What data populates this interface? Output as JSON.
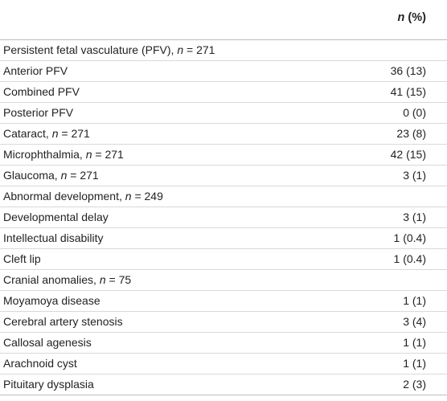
{
  "table": {
    "header": {
      "n_symbol": "n",
      "pct_suffix": " (%)"
    },
    "rows": [
      {
        "label_pre": "Persistent fetal vasculature (PFV), ",
        "n_var": "n",
        "label_post": " = 271",
        "value": ""
      },
      {
        "label_pre": "Anterior PFV",
        "n_var": "",
        "label_post": "",
        "value": "36 (13)"
      },
      {
        "label_pre": "Combined PFV",
        "n_var": "",
        "label_post": "",
        "value": "41 (15)"
      },
      {
        "label_pre": "Posterior PFV",
        "n_var": "",
        "label_post": "",
        "value": "0 (0)"
      },
      {
        "label_pre": "Cataract, ",
        "n_var": "n",
        "label_post": " = 271",
        "value": "23 (8)"
      },
      {
        "label_pre": "Microphthalmia, ",
        "n_var": "n",
        "label_post": " = 271",
        "value": "42 (15)"
      },
      {
        "label_pre": "Glaucoma, ",
        "n_var": "n",
        "label_post": " = 271",
        "value": "3 (1)"
      },
      {
        "label_pre": "Abnormal development, ",
        "n_var": "n",
        "label_post": " = 249",
        "value": ""
      },
      {
        "label_pre": "Developmental delay",
        "n_var": "",
        "label_post": "",
        "value": "3 (1)"
      },
      {
        "label_pre": "Intellectual disability",
        "n_var": "",
        "label_post": "",
        "value": "1 (0.4)"
      },
      {
        "label_pre": "Cleft lip",
        "n_var": "",
        "label_post": "",
        "value": "1 (0.4)"
      },
      {
        "label_pre": "Cranial anomalies, ",
        "n_var": "n",
        "label_post": " = 75",
        "value": ""
      },
      {
        "label_pre": "Moyamoya disease",
        "n_var": "",
        "label_post": "",
        "value": "1 (1)"
      },
      {
        "label_pre": "Cerebral artery stenosis",
        "n_var": "",
        "label_post": "",
        "value": "3 (4)"
      },
      {
        "label_pre": "Callosal agenesis",
        "n_var": "",
        "label_post": "",
        "value": "1 (1)"
      },
      {
        "label_pre": "Arachnoid cyst",
        "n_var": "",
        "label_post": "",
        "value": "1 (1)"
      },
      {
        "label_pre": "Pituitary dysplasia",
        "n_var": "",
        "label_post": "",
        "value": "2 (3)"
      }
    ]
  }
}
